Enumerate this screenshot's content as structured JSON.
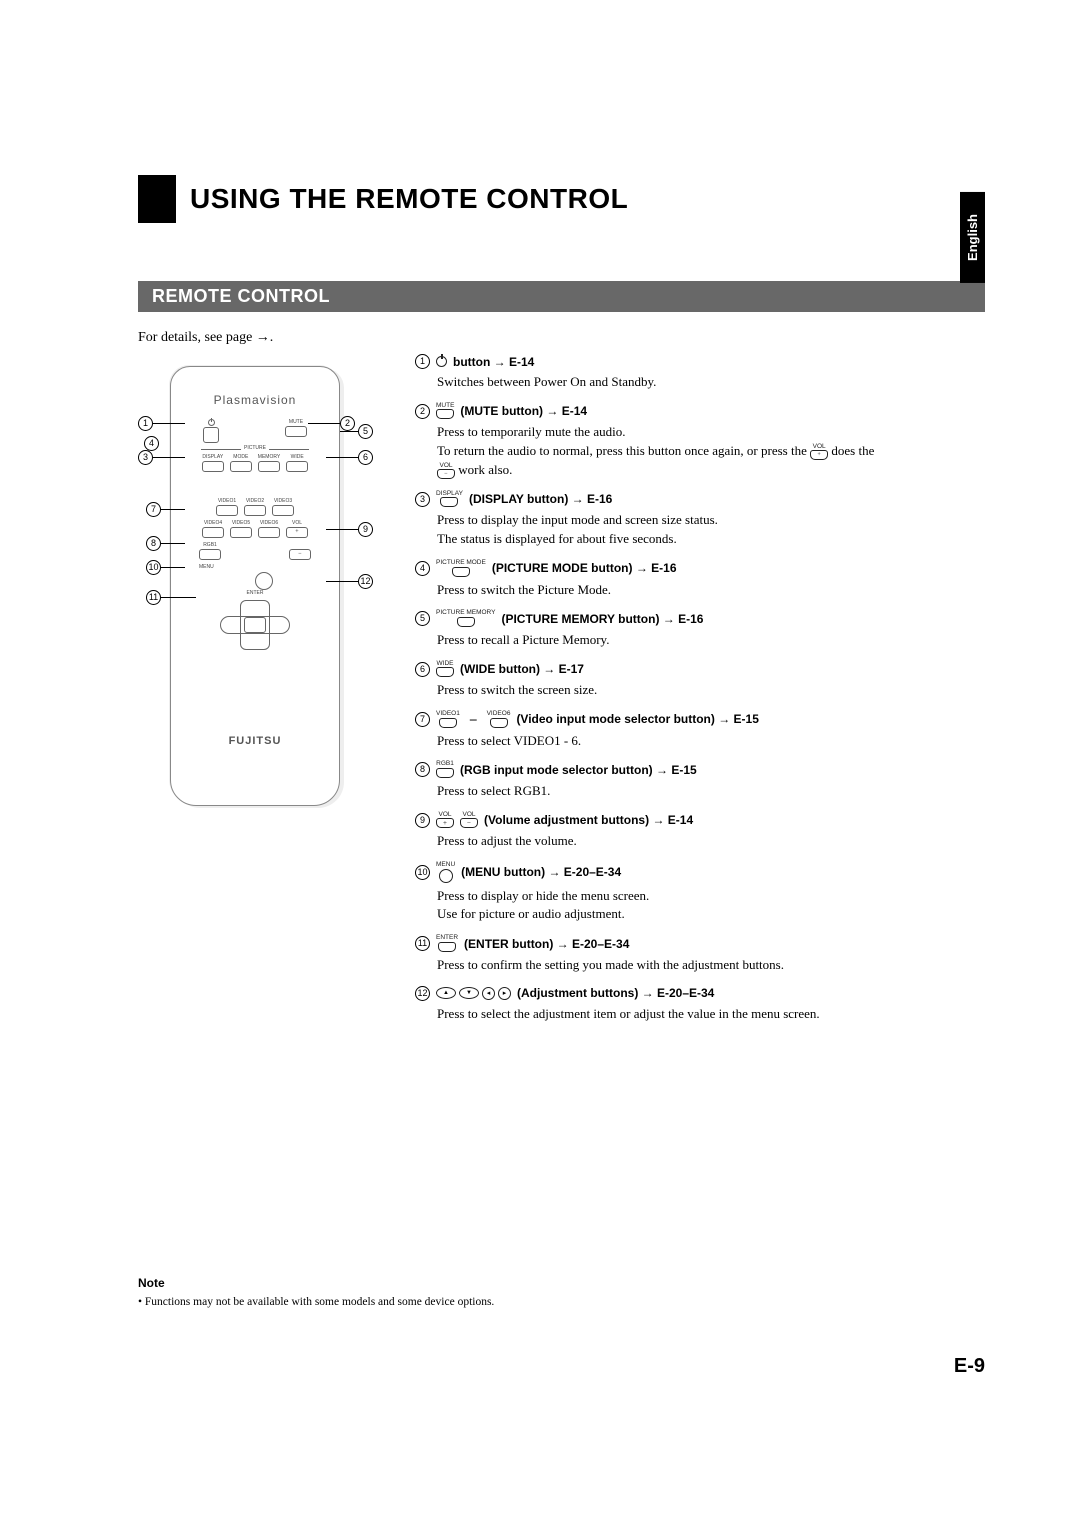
{
  "language_tab": "English",
  "main_title": "USING THE REMOTE CONTROL",
  "section_title": "REMOTE CONTROL",
  "details_line": "For details, see page →.",
  "remote": {
    "brand_top": "Plasmavision",
    "brand_bottom": "FUJITSU",
    "labels": {
      "mute": "MUTE",
      "display": "DISPLAY",
      "picture": "PICTURE",
      "mode": "MODE",
      "memory": "MEMORY",
      "wide": "WIDE",
      "video1": "VIDEO1",
      "video2": "VIDEO2",
      "video3": "VIDEO3",
      "video4": "VIDEO4",
      "video5": "VIDEO5",
      "video6": "VIDEO6",
      "vol": "VOL",
      "rgb1": "RGB1",
      "menu": "MENU",
      "enter": "ENTER"
    }
  },
  "callout_numbers": [
    "1",
    "2",
    "3",
    "4",
    "5",
    "6",
    "7",
    "8",
    "9",
    "10",
    "11",
    "12"
  ],
  "items": [
    {
      "num": "1",
      "icon": "pwr",
      "icon_label": "",
      "title": " button → E-14",
      "body": [
        "Switches between Power On and Standby."
      ]
    },
    {
      "num": "2",
      "icon": "btn",
      "icon_label": "MUTE",
      "title": " (MUTE button) → E-14",
      "body_pre": "Press to temporarily mute the audio.",
      "body_complex": true,
      "body_complex_before": "To return the audio to normal, press this button once again, or press the ",
      "body_complex_after1": " does the ",
      "body_complex_after2": " work also."
    },
    {
      "num": "3",
      "icon": "btn",
      "icon_label": "DISPLAY",
      "title": " (DISPLAY button) → E-16",
      "body": [
        "Press to display the input mode and screen size status.",
        "The status is displayed for about five seconds."
      ]
    },
    {
      "num": "4",
      "icon": "btn",
      "icon_label": "PICTURE MODE",
      "title": " (PICTURE MODE button) → E-16",
      "body": [
        "Press to switch the Picture Mode."
      ]
    },
    {
      "num": "5",
      "icon": "btn",
      "icon_label": "PICTURE MEMORY",
      "title": " (PICTURE MEMORY button) → E-16",
      "body": [
        "Press to recall a Picture Memory."
      ]
    },
    {
      "num": "6",
      "icon": "btn",
      "icon_label": "WIDE",
      "title": " (WIDE button) → E-17",
      "body": [
        "Press to switch the screen size."
      ]
    },
    {
      "num": "7",
      "icon": "range",
      "icon_label": "VIDEO1",
      "icon_label2": "VIDEO6",
      "title": " (Video input mode selector button) → E-15",
      "body": [
        "Press to select VIDEO1 - 6."
      ]
    },
    {
      "num": "8",
      "icon": "btn",
      "icon_label": "RGB1",
      "title": " (RGB input mode selector button) → E-15",
      "body": [
        "Press to select RGB1."
      ]
    },
    {
      "num": "9",
      "icon": "volpair",
      "icon_label": "VOL",
      "title": " (Volume adjustment buttons) → E-14",
      "body": [
        "Press to adjust the volume."
      ]
    },
    {
      "num": "10",
      "icon": "round",
      "icon_label": "MENU",
      "title": " (MENU button) → E-20–E-34",
      "body": [
        "Press to display or hide the menu screen.",
        "Use for picture or audio adjustment."
      ]
    },
    {
      "num": "11",
      "icon": "btn",
      "icon_label": "ENTER",
      "title": " (ENTER button) → E-20–E-34",
      "body": [
        "Press to confirm the setting you made with the adjustment buttons."
      ]
    },
    {
      "num": "12",
      "icon": "adj",
      "title": " (Adjustment buttons) → E-20–E-34",
      "body": [
        "Press to select the adjustment item or adjust the value in the menu screen."
      ]
    }
  ],
  "note": {
    "head": "Note",
    "text": "•  Functions may not be available with some models and some device options."
  },
  "page_number": "E-9",
  "colors": {
    "section_bar": "#686868",
    "text": "#000000",
    "remote_border": "#888888"
  }
}
